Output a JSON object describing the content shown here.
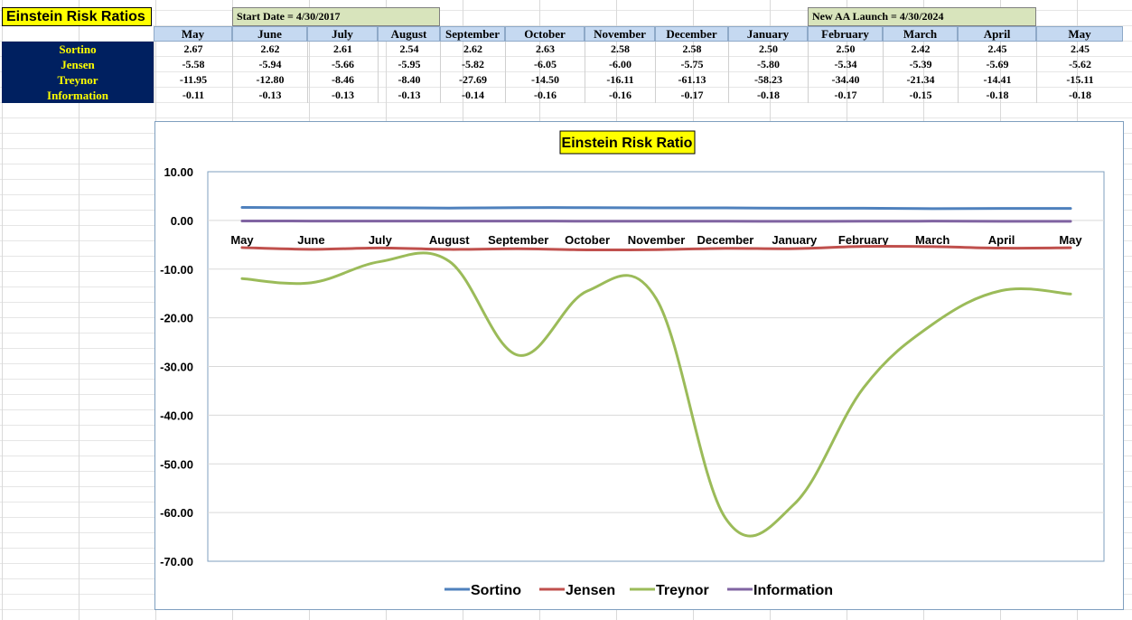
{
  "sheet": {
    "title": "Einstein Risk Ratios",
    "start_note": "Start Date = 4/30/2017",
    "launch_note": "New AA Launch = 4/30/2024",
    "months": [
      "May",
      "June",
      "July",
      "August",
      "September",
      "October",
      "November",
      "December",
      "January",
      "February",
      "March",
      "April",
      "May"
    ],
    "rows": [
      {
        "label": "Sortino",
        "values": [
          "2.67",
          "2.62",
          "2.61",
          "2.54",
          "2.62",
          "2.63",
          "2.58",
          "2.58",
          "2.50",
          "2.50",
          "2.42",
          "2.45",
          "2.45"
        ]
      },
      {
        "label": "Jensen",
        "values": [
          "-5.58",
          "-5.94",
          "-5.66",
          "-5.95",
          "-5.82",
          "-6.05",
          "-6.00",
          "-5.75",
          "-5.80",
          "-5.34",
          "-5.39",
          "-5.69",
          "-5.62"
        ]
      },
      {
        "label": "Treynor",
        "values": [
          "-11.95",
          "-12.80",
          "-8.46",
          "-8.40",
          "-27.69",
          "-14.50",
          "-16.11",
          "-61.13",
          "-58.23",
          "-34.40",
          "-21.34",
          "-14.41",
          "-15.11"
        ]
      },
      {
        "label": "Information",
        "values": [
          "-0.11",
          "-0.13",
          "-0.13",
          "-0.13",
          "-0.14",
          "-0.16",
          "-0.16",
          "-0.17",
          "-0.18",
          "-0.17",
          "-0.15",
          "-0.18",
          "-0.18"
        ]
      }
    ]
  },
  "chart_data": {
    "type": "line",
    "title": "Einstein Risk Ratio",
    "xlabel": "",
    "ylabel": "",
    "categories": [
      "May",
      "June",
      "July",
      "August",
      "September",
      "October",
      "November",
      "December",
      "January",
      "February",
      "March",
      "April",
      "May"
    ],
    "ylim": [
      -70,
      10
    ],
    "yticks": [
      "10.00",
      "0.00",
      "-10.00",
      "-20.00",
      "-30.00",
      "-40.00",
      "-50.00",
      "-60.00",
      "-70.00"
    ],
    "grid": true,
    "smooth": true,
    "legend": "bottom",
    "series": [
      {
        "name": "Sortino",
        "color": "#4f81bd",
        "values": [
          2.67,
          2.62,
          2.61,
          2.54,
          2.62,
          2.63,
          2.58,
          2.58,
          2.5,
          2.5,
          2.42,
          2.45,
          2.45
        ]
      },
      {
        "name": "Jensen",
        "color": "#c0504d",
        "values": [
          -5.58,
          -5.94,
          -5.66,
          -5.95,
          -5.82,
          -6.05,
          -6.0,
          -5.75,
          -5.8,
          -5.34,
          -5.39,
          -5.69,
          -5.62
        ]
      },
      {
        "name": "Treynor",
        "color": "#9bbb59",
        "values": [
          -11.95,
          -12.8,
          -8.46,
          -8.4,
          -27.69,
          -14.5,
          -16.11,
          -61.13,
          -58.23,
          -34.4,
          -21.34,
          -14.41,
          -15.11
        ]
      },
      {
        "name": "Information",
        "color": "#8064a2",
        "values": [
          -0.11,
          -0.13,
          -0.13,
          -0.13,
          -0.14,
          -0.16,
          -0.16,
          -0.17,
          -0.18,
          -0.17,
          -0.15,
          -0.18,
          -0.18
        ]
      }
    ]
  }
}
